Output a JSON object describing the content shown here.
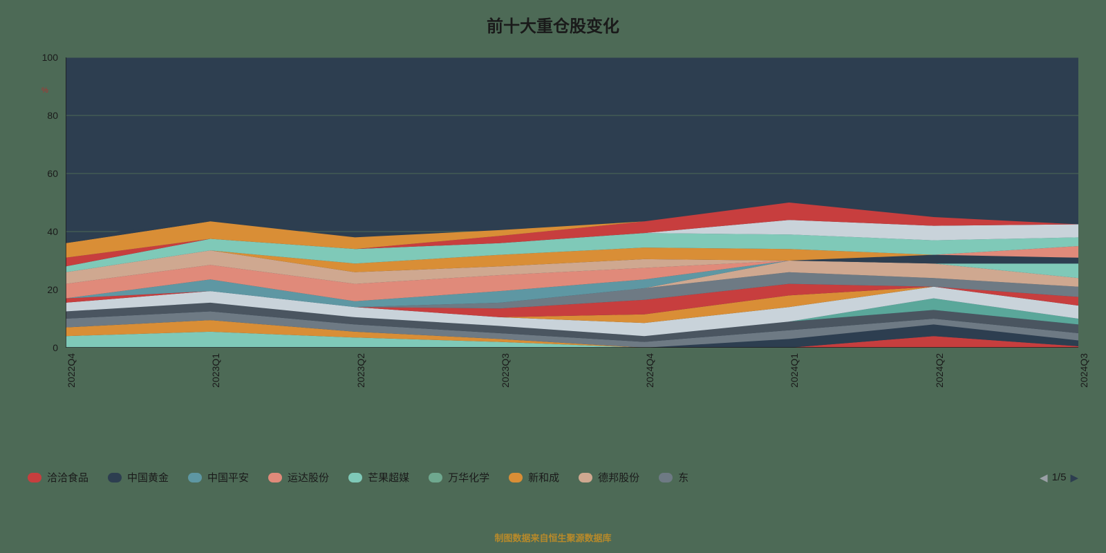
{
  "title": "前十大重仓股变化",
  "footer": "制图数据来自恒生聚源数据库",
  "chart": {
    "type": "area-stacked",
    "background_fill": "#2d3e50",
    "grid_color": "#4d6a56",
    "axis_line_color": "#1a1a1a",
    "y_unit": "%",
    "y_unit_color": "#b03030",
    "ylim": [
      0,
      100
    ],
    "yticks": [
      0,
      20,
      40,
      60,
      80,
      100
    ],
    "categories": [
      "2022Q4",
      "2023Q1",
      "2023Q2",
      "2023Q3",
      "2024Q4",
      "2024Q1",
      "2024Q2",
      "2024Q3"
    ],
    "x_label_rotation": -90,
    "series": [
      {
        "name": "s01",
        "color": "#7fc9b8",
        "values": [
          4.0,
          5.5,
          3.5,
          2.0,
          0.0,
          0.0,
          0.0,
          0.0
        ]
      },
      {
        "name": "s02",
        "color": "#d98e36",
        "values": [
          3.0,
          4.0,
          2.0,
          1.0,
          0.0,
          0.0,
          0.0,
          0.0
        ]
      },
      {
        "name": "s03",
        "color": "#c73e3e",
        "values": [
          0.0,
          0.0,
          0.0,
          0.0,
          0.0,
          0.0,
          4.0,
          0.5
        ]
      },
      {
        "name": "s04",
        "color": "#2d3e50",
        "values": [
          0.0,
          0.0,
          0.0,
          0.0,
          0.0,
          3.0,
          4.0,
          2.0
        ]
      },
      {
        "name": "s05",
        "color": "#6e7a84",
        "values": [
          3.0,
          3.0,
          2.5,
          2.0,
          2.0,
          3.0,
          2.0,
          2.5
        ]
      },
      {
        "name": "s06",
        "color": "#4a5560",
        "values": [
          2.5,
          3.0,
          2.5,
          2.5,
          2.0,
          3.0,
          3.0,
          3.0
        ]
      },
      {
        "name": "s07",
        "color": "#5aa79a",
        "values": [
          0.0,
          0.0,
          0.0,
          0.0,
          0.0,
          0.0,
          4.0,
          2.0
        ]
      },
      {
        "name": "s08",
        "color": "#c9d3da",
        "values": [
          3.0,
          4.0,
          3.5,
          3.0,
          4.5,
          5.0,
          4.0,
          4.5
        ]
      },
      {
        "name": "s09",
        "color": "#d98e36",
        "values": [
          0.0,
          0.0,
          0.0,
          0.0,
          3.0,
          4.0,
          0.0,
          0.0
        ]
      },
      {
        "name": "s10",
        "color": "#c73e3e",
        "values": [
          1.5,
          0.0,
          0.0,
          3.0,
          5.0,
          4.0,
          0.0,
          3.0
        ]
      },
      {
        "name": "s11",
        "color": "#6e7a84",
        "values": [
          0.0,
          0.0,
          0.0,
          2.0,
          4.0,
          4.0,
          3.0,
          3.5
        ]
      },
      {
        "name": "s12",
        "color": "#cfa890",
        "values": [
          0.0,
          0.0,
          0.0,
          0.0,
          0.0,
          4.0,
          5.0,
          3.0
        ]
      },
      {
        "name": "s13",
        "color": "#5e97a3",
        "values": [
          0.0,
          4.0,
          2.0,
          4.0,
          3.0,
          0.0,
          0.0,
          0.0
        ]
      },
      {
        "name": "s14",
        "color": "#7fc9b8",
        "values": [
          0.0,
          0.0,
          0.0,
          0.0,
          0.0,
          0.0,
          0.0,
          5.0
        ]
      },
      {
        "name": "s15",
        "color": "#2d3e50",
        "values": [
          0.0,
          0.0,
          0.0,
          0.0,
          0.0,
          0.0,
          3.0,
          2.0
        ]
      },
      {
        "name": "s16",
        "color": "#e08a7a",
        "values": [
          5.0,
          5.0,
          6.0,
          5.5,
          4.0,
          0.0,
          0.0,
          4.0
        ]
      },
      {
        "name": "s17",
        "color": "#cfa890",
        "values": [
          4.0,
          5.0,
          4.0,
          3.0,
          3.0,
          0.0,
          0.0,
          0.0
        ]
      },
      {
        "name": "s18",
        "color": "#d98e36",
        "values": [
          0.0,
          0.0,
          3.0,
          4.0,
          4.0,
          4.0,
          0.0,
          0.0
        ]
      },
      {
        "name": "s19",
        "color": "#7fc9b8",
        "values": [
          2.0,
          4.0,
          5.0,
          4.0,
          5.0,
          5.0,
          5.0,
          3.0
        ]
      },
      {
        "name": "s20",
        "color": "#c9d3da",
        "values": [
          0.0,
          0.0,
          0.0,
          0.0,
          0.0,
          5.0,
          5.0,
          4.5
        ]
      },
      {
        "name": "s21",
        "color": "#c73e3e",
        "values": [
          3.0,
          0.0,
          0.0,
          2.5,
          4.0,
          6.0,
          3.0,
          0.0
        ]
      },
      {
        "name": "s22",
        "color": "#d98e36",
        "values": [
          5.0,
          6.0,
          4.0,
          2.0,
          0.0,
          0.0,
          0.0,
          0.0
        ]
      },
      {
        "name": "s23",
        "color": "#2d3e50",
        "values": [
          2.0,
          0.0,
          0.0,
          0.0,
          0.0,
          0.0,
          0.0,
          0.0
        ]
      }
    ]
  },
  "legend": {
    "items": [
      {
        "label": "洽洽食品",
        "color": "#c73e3e"
      },
      {
        "label": "中国黄金",
        "color": "#2d3e50"
      },
      {
        "label": "中国平安",
        "color": "#5e97a3"
      },
      {
        "label": "运达股份",
        "color": "#e08a7a"
      },
      {
        "label": "芒果超媒",
        "color": "#7fc9b8"
      },
      {
        "label": "万华化学",
        "color": "#6fa88f"
      },
      {
        "label": "新和成",
        "color": "#d98e36"
      },
      {
        "label": "德邦股份",
        "color": "#cfa890"
      },
      {
        "label": "东",
        "color": "#6e7a84"
      }
    ],
    "pager": {
      "current": 1,
      "total": 5,
      "text": "1/5",
      "prev_color": "#9aa0a6",
      "next_color": "#2d3e50"
    }
  }
}
